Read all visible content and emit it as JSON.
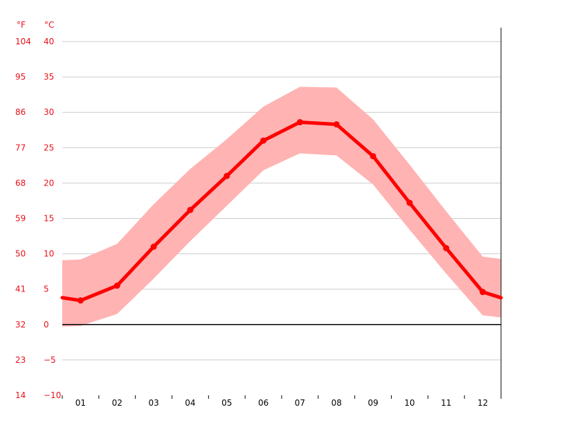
{
  "chart_data": {
    "type": "line",
    "x_unit_labels": [
      "01",
      "02",
      "03",
      "04",
      "05",
      "06",
      "07",
      "08",
      "09",
      "10",
      "11",
      "12"
    ],
    "y_units": {
      "fahrenheit": "°F",
      "celsius": "°C"
    },
    "y_ticks_celsius": [
      "40",
      "35",
      "30",
      "25",
      "20",
      "15",
      "10",
      "5",
      "0",
      "−5",
      "−10"
    ],
    "y_ticks_fahrenheit": [
      "104",
      "95",
      "86",
      "77",
      "68",
      "59",
      "50",
      "41",
      "32",
      "23",
      "14"
    ],
    "ylim": [
      -10,
      40
    ],
    "grid": true,
    "series": [
      {
        "values": [
          3.4,
          5.5,
          11.0,
          16.2,
          21.0,
          26.0,
          28.6,
          28.3,
          23.8,
          17.2,
          10.8,
          4.6
        ],
        "color": "#ff0000"
      }
    ],
    "range_band": {
      "high": [
        9.2,
        11.4,
        17.0,
        22.0,
        26.2,
        30.8,
        33.6,
        33.5,
        29.0,
        22.6,
        16.0,
        9.6
      ],
      "low": [
        -0.2,
        1.5,
        6.5,
        11.8,
        16.8,
        21.8,
        24.2,
        23.9,
        19.8,
        13.4,
        7.2,
        1.3
      ],
      "color": "#ffb3b3"
    },
    "baseline_celsius": 0
  }
}
